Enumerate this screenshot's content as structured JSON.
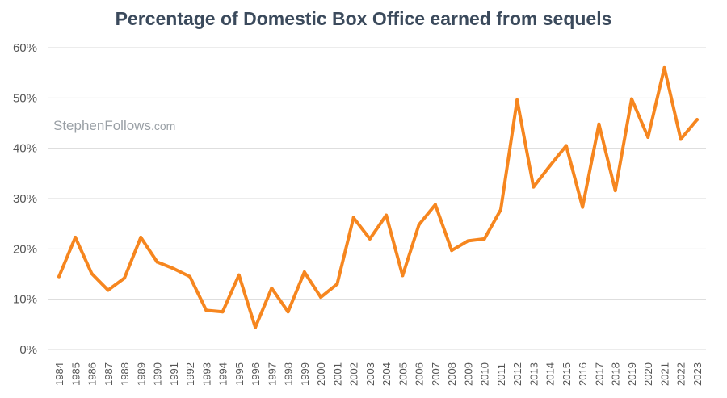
{
  "chart_data": {
    "type": "line",
    "title": "Percentage of Domestic Box Office earned from sequels",
    "watermark": {
      "name": "StephenFollows",
      "suffix": ".com"
    },
    "xlabel": "",
    "ylabel": "",
    "ylim": [
      0,
      60
    ],
    "yticks": [
      "0%",
      "10%",
      "20%",
      "30%",
      "40%",
      "50%",
      "60%"
    ],
    "grid": true,
    "line_color": "#f6861f",
    "grid_color": "#d9d9d9",
    "categories": [
      "1984",
      "1985",
      "1986",
      "1987",
      "1988",
      "1989",
      "1990",
      "1991",
      "1992",
      "1993",
      "1994",
      "1995",
      "1996",
      "1997",
      "1998",
      "1999",
      "2000",
      "2001",
      "2002",
      "2003",
      "2004",
      "2005",
      "2006",
      "2007",
      "2008",
      "2009",
      "2010",
      "2011",
      "2012",
      "2013",
      "2014",
      "2015",
      "2016",
      "2017",
      "2018",
      "2019",
      "2020",
      "2021",
      "2022",
      "2023"
    ],
    "series": [
      {
        "values": [
          14.5,
          22.3,
          15.1,
          11.8,
          14.2,
          22.3,
          17.4,
          16.1,
          14.5,
          7.8,
          7.5,
          14.8,
          4.4,
          12.2,
          7.5,
          15.4,
          10.4,
          13.0,
          26.2,
          22.0,
          26.7,
          14.7,
          24.8,
          28.8,
          19.7,
          21.6,
          22.0,
          27.8,
          49.6,
          32.3,
          36.5,
          40.5,
          28.3,
          44.8,
          31.6,
          49.8,
          42.2,
          56.0,
          41.8,
          45.7
        ]
      }
    ]
  }
}
